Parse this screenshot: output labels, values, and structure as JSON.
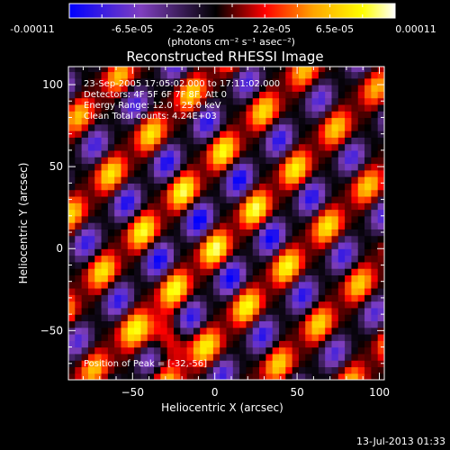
{
  "chart_data": {
    "type": "heatmap",
    "title": "Reconstructed RHESSI Image",
    "xlabel": "Heliocentric X (arcsec)",
    "ylabel": "Heliocentric Y (arcsec)",
    "xlim": [
      -89,
      103
    ],
    "ylim": [
      -80,
      111
    ],
    "x_ticks": [
      -50,
      0,
      50,
      100
    ],
    "y_ticks": [
      -50,
      0,
      50,
      100
    ],
    "colorbar": {
      "range": [
        -0.00011,
        0.00011
      ],
      "tick_labels": [
        "-0.00011",
        "-6.5e-05",
        "-2.2e-05",
        "2.2e-05",
        "6.5e-05",
        "0.00011"
      ],
      "unit_label": "(photons cm⁻² s⁻¹ asec⁻²)",
      "colormap": [
        "#0000ff",
        "#7f3fbf",
        "#000000",
        "#ff0000",
        "#ffa500",
        "#ffff00",
        "#ffffff"
      ]
    },
    "annotations": [
      "23-Sep-2005 17:05:02.000 to 17:11:02.000",
      "Detectors: 4F 5F 6F 7F 8F, Att 0",
      "Energy Range: 12.0 - 25.0 keV",
      "Clean     Total counts: 4.24E+03"
    ],
    "peak_text": "Position of Peak = [-32,-56]",
    "peak_position": [
      -32,
      -56
    ],
    "timestamp": "13-Jul-2013 01:33",
    "grid": false
  }
}
